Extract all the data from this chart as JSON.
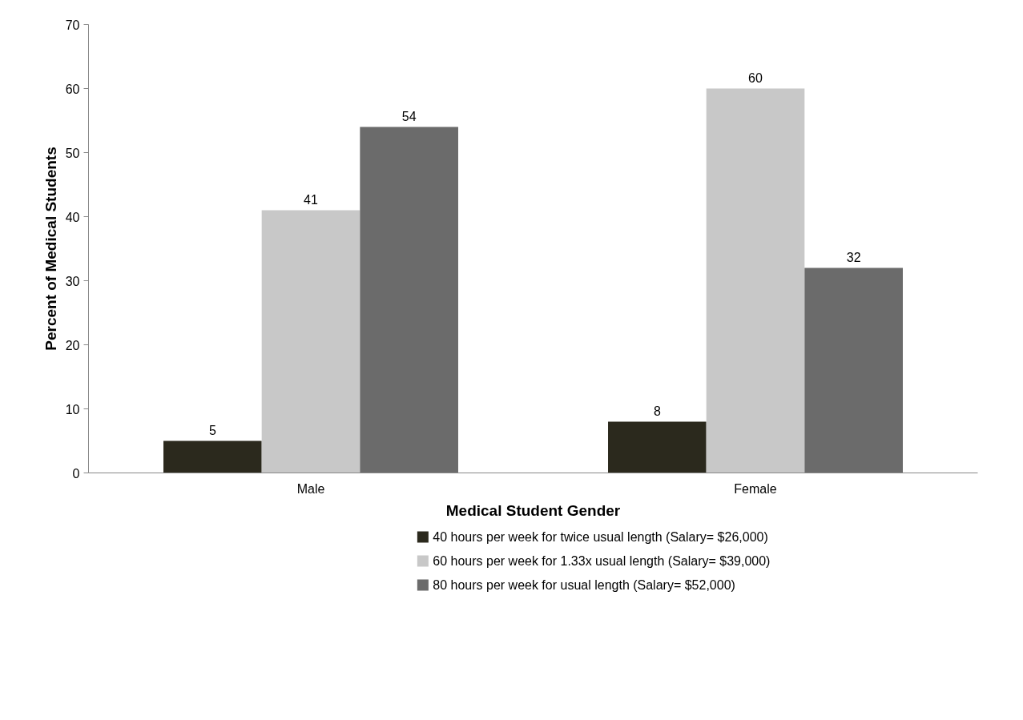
{
  "chart_data": {
    "type": "bar",
    "xlabel": "Medical Student Gender",
    "ylabel": "Percent of Medical Students",
    "categories": [
      "Male",
      "Female"
    ],
    "series": [
      {
        "name": "40 hours per week for twice usual length (Salary= $26,000)",
        "color": "#2b291d",
        "values": [
          5,
          8
        ]
      },
      {
        "name": "60 hours per week for 1.33x usual length (Salary= $39,000)",
        "color": "#c8c8c8",
        "values": [
          41,
          60
        ]
      },
      {
        "name": "80 hours per week for usual length (Salary= $52,000)",
        "color": "#6b6b6b",
        "values": [
          54,
          32
        ]
      }
    ],
    "ylim": [
      0,
      70
    ],
    "yticks": [
      0,
      10,
      20,
      30,
      40,
      50,
      60,
      70
    ],
    "data_labels": true,
    "legend": "bottom"
  }
}
